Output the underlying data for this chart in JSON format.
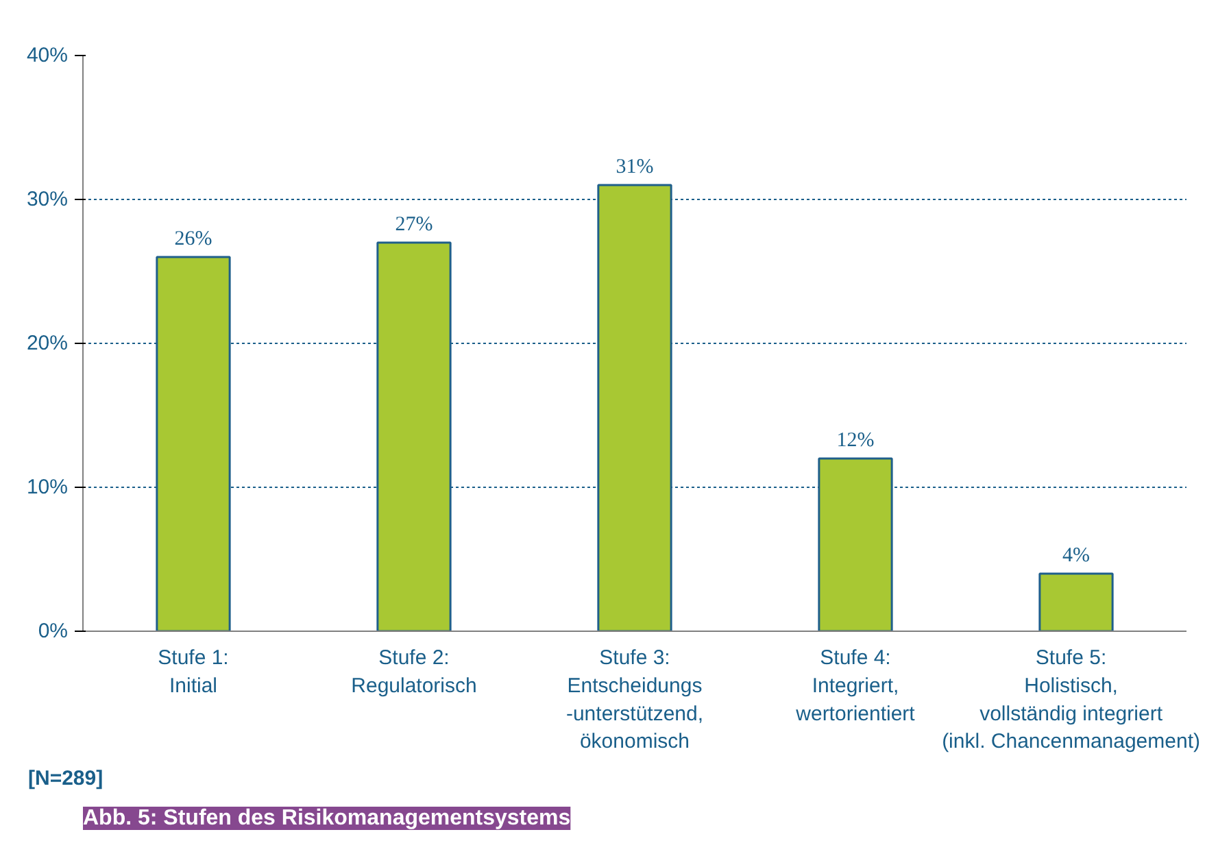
{
  "chart_data": {
    "type": "bar",
    "title": "Abb. 5: Stufen des Risikomanagementsystems",
    "categories": [
      "Stufe 1:\nInitial",
      "Stufe 2:\nRegulatorisch",
      "Stufe 3:\nEntscheidungs\n-unterstützend,\nökonomisch",
      "Stufe 4:\nIntegriert,\nwertorientiert",
      "Stufe 5:\nHolistisch,\nvollständig integriert\n(inkl. Chancenmanagement)"
    ],
    "values": [
      26,
      27,
      31,
      12,
      4
    ],
    "color": "#a8c833",
    "data_labels": true,
    "value_labels": [
      "26%",
      "27%",
      "31%",
      "12%",
      "4%"
    ],
    "ylim": [
      0,
      40
    ],
    "yticks": [
      {
        "value": 0,
        "label": "0%"
      },
      {
        "value": 10,
        "label": "10%"
      },
      {
        "value": 20,
        "label": "20%"
      },
      {
        "value": 30,
        "label": "30%"
      },
      {
        "value": 40,
        "label": "40%"
      }
    ],
    "grid": "y",
    "annotations": [
      "[N=289]"
    ]
  }
}
